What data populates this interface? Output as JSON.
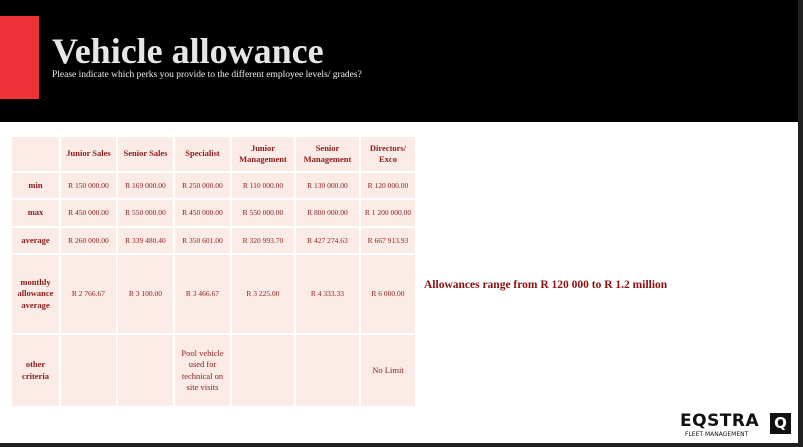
{
  "header": {
    "title": "Vehicle allowance",
    "subtitle": "Please indicate which perks you provide to the different employee levels/ grades?"
  },
  "table": {
    "columns": [
      "Junior Sales",
      "Senior Sales",
      "Specialist",
      "Junior Management",
      "Senior Management",
      "Directors/ Exco"
    ],
    "rows": [
      {
        "label": "min",
        "values": [
          "R 150 000.00",
          "R 169 000.00",
          "R 250 000.00",
          "R 110 000.00",
          "R 130 000.00",
          "R 120 000.00"
        ]
      },
      {
        "label": "max",
        "values": [
          "R 450 000.00",
          "R 550 000.00",
          "R 450 000.00",
          "R 550 000.00",
          "R 800 000.00",
          "R 1 200 000.00"
        ]
      },
      {
        "label": "average",
        "values": [
          "R 260 000.00",
          "R 339 480.40",
          "R 350 601.00",
          "R 320 993.70",
          "R 427 274.63",
          "R 667 913.93"
        ]
      },
      {
        "label": "monthly allowance average",
        "values": [
          "R 2 766.67",
          "R 3 100.00",
          "R 3 466.67",
          "R 3 225.00",
          "R 4 333.33",
          "R 6 000.00"
        ]
      },
      {
        "label": "other criteria",
        "values": [
          "",
          "",
          "Pool vehicle used for technical on site visits",
          "",
          "",
          "No Limit"
        ]
      }
    ]
  },
  "note": "Allowances range from R 120 000 to R 1.2 million",
  "logo": {
    "word": "EQSTRA",
    "sub": "FLEET MANAGEMENT",
    "mark": "Q"
  },
  "colors": {
    "accent": "#ee3338",
    "cell_bg": "#fbebe6",
    "text": "#8b1a1a"
  }
}
